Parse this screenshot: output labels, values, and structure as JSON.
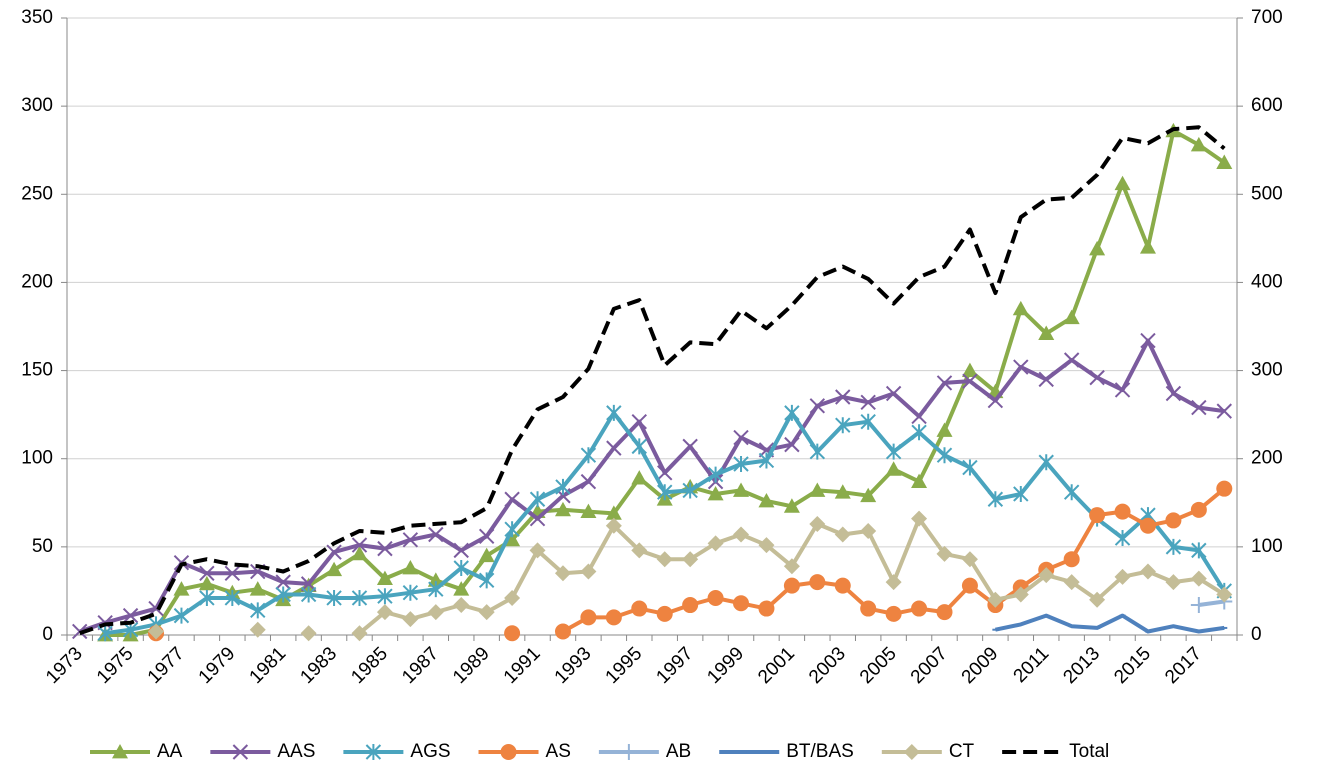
{
  "chart_data": {
    "type": "line",
    "categories": [
      "1973",
      null,
      "1975",
      null,
      "1977",
      null,
      "1979",
      null,
      "1981",
      null,
      "1983",
      null,
      "1985",
      null,
      "1987",
      null,
      "1989",
      null,
      "1991",
      null,
      "1993",
      null,
      "1995",
      null,
      "1997",
      null,
      "1999",
      null,
      "2001",
      null,
      "2003",
      null,
      "2005",
      null,
      "2007",
      null,
      "2009",
      null,
      "2011",
      null,
      "2013",
      null,
      "2015",
      null,
      "2017",
      null
    ],
    "ylim": [
      0,
      350
    ],
    "yticks": [
      0,
      50,
      100,
      150,
      200,
      250,
      300,
      350
    ],
    "y2lim": [
      0,
      700
    ],
    "y2ticks": [
      0,
      100,
      200,
      300,
      400,
      500,
      600,
      700
    ],
    "grid": true,
    "legend": "bottom",
    "series": [
      {
        "name": "AA",
        "color": "#8aac4a",
        "marker": "triangle",
        "line_style": "solid",
        "values": [
          null,
          0,
          0,
          3,
          26,
          29,
          24,
          26,
          20,
          28,
          37,
          46,
          32,
          38,
          31,
          26,
          45,
          54,
          70,
          71,
          70,
          69,
          89,
          77,
          84,
          80,
          82,
          76,
          73,
          82,
          81,
          79,
          94,
          87,
          116,
          150,
          138,
          185,
          171,
          180,
          219,
          256,
          220,
          286,
          278,
          268
        ]
      },
      {
        "name": "AAS",
        "color": "#7b5b9e",
        "marker": "x",
        "line_style": "solid",
        "values": [
          2,
          7,
          11,
          15,
          41,
          35,
          35,
          36,
          30,
          29,
          47,
          51,
          49,
          54,
          57,
          48,
          56,
          77,
          66,
          79,
          87,
          106,
          121,
          92,
          107,
          87,
          112,
          105,
          108,
          130,
          135,
          132,
          137,
          124,
          143,
          144,
          133,
          152,
          145,
          156,
          146,
          139,
          167,
          137,
          129,
          127
        ]
      },
      {
        "name": "AGS",
        "color": "#4aa4be",
        "marker": "asterisk",
        "line_style": "solid",
        "values": [
          null,
          1,
          3,
          6,
          11,
          21,
          21,
          14,
          23,
          23,
          21,
          21,
          22,
          24,
          26,
          38,
          31,
          60,
          77,
          84,
          102,
          126,
          107,
          81,
          82,
          91,
          97,
          99,
          126,
          104,
          119,
          121,
          104,
          115,
          102,
          95,
          77,
          80,
          98,
          81,
          66,
          55,
          68,
          50,
          48,
          25
        ]
      },
      {
        "name": "AS",
        "color": "#ee8340",
        "marker": "circle",
        "line_style": "solid",
        "values": [
          null,
          null,
          null,
          1,
          null,
          null,
          null,
          null,
          null,
          null,
          null,
          null,
          null,
          null,
          null,
          null,
          null,
          1,
          null,
          2,
          10,
          10,
          15,
          12,
          17,
          21,
          18,
          15,
          28,
          30,
          28,
          15,
          12,
          15,
          13,
          28,
          17,
          27,
          37,
          43,
          68,
          70,
          62,
          65,
          71,
          83
        ]
      },
      {
        "name": "AB",
        "color": "#95b3d7",
        "marker": "plus",
        "line_style": "solid",
        "values": [
          null,
          null,
          null,
          null,
          null,
          null,
          null,
          null,
          null,
          null,
          null,
          null,
          null,
          null,
          null,
          null,
          null,
          null,
          null,
          null,
          null,
          null,
          null,
          null,
          null,
          null,
          null,
          null,
          null,
          null,
          null,
          null,
          null,
          null,
          null,
          null,
          null,
          null,
          null,
          null,
          null,
          null,
          null,
          null,
          17,
          19
        ]
      },
      {
        "name": "BT/BAS",
        "color": "#4f81bd",
        "marker": "dash",
        "line_style": "solid",
        "values": [
          null,
          null,
          null,
          null,
          null,
          null,
          null,
          null,
          null,
          null,
          null,
          null,
          null,
          null,
          null,
          null,
          null,
          null,
          null,
          null,
          null,
          null,
          null,
          null,
          null,
          null,
          null,
          null,
          null,
          null,
          null,
          null,
          null,
          null,
          null,
          null,
          3,
          6,
          11,
          5,
          4,
          11,
          2,
          5,
          2,
          4
        ]
      },
      {
        "name": "CT",
        "color": "#c4bd97",
        "marker": "diamond",
        "line_style": "solid",
        "values": [
          null,
          null,
          null,
          2,
          null,
          null,
          null,
          3,
          null,
          1,
          null,
          1,
          13,
          9,
          13,
          17,
          13,
          21,
          48,
          35,
          36,
          62,
          48,
          43,
          43,
          52,
          57,
          51,
          39,
          63,
          57,
          59,
          30,
          66,
          46,
          43,
          20,
          23,
          34,
          30,
          20,
          33,
          36,
          30,
          32,
          23
        ]
      },
      {
        "name": "Total",
        "color": "#000000",
        "marker": "none",
        "line_style": "dashed",
        "axis": "y2",
        "values": [
          2,
          12,
          14,
          24,
          80,
          86,
          80,
          78,
          72,
          84,
          104,
          118,
          116,
          124,
          126,
          128,
          144,
          210,
          256,
          270,
          302,
          370,
          380,
          306,
          332,
          330,
          368,
          348,
          374,
          406,
          418,
          404,
          376,
          406,
          418,
          460,
          388,
          474,
          494,
          496,
          522,
          564,
          558,
          574,
          576,
          552
        ]
      }
    ]
  }
}
